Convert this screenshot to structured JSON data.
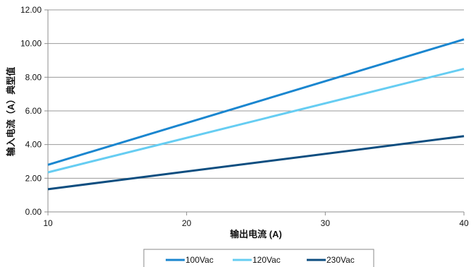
{
  "chart_data": {
    "type": "line",
    "xlabel": "输出电流 (A)",
    "ylabel": "输入电流（A）典型值",
    "xlim": [
      10,
      40
    ],
    "ylim": [
      0,
      12
    ],
    "x_ticks": [
      "10",
      "20",
      "30",
      "40"
    ],
    "y_ticks": [
      "0.00",
      "2.00",
      "4.00",
      "6.00",
      "8.00",
      "10.00",
      "12.00"
    ],
    "grid": "horizontal",
    "legend_position": "bottom",
    "series": [
      {
        "name": "100Vac",
        "color": "#1a86cf",
        "x": [
          10,
          40
        ],
        "y": [
          2.8,
          10.25
        ]
      },
      {
        "name": "120Vac",
        "color": "#66cdf2",
        "x": [
          10,
          40
        ],
        "y": [
          2.35,
          8.5
        ]
      },
      {
        "name": "230Vac",
        "color": "#0e4e80",
        "x": [
          10,
          40
        ],
        "y": [
          1.35,
          4.5
        ]
      }
    ]
  }
}
